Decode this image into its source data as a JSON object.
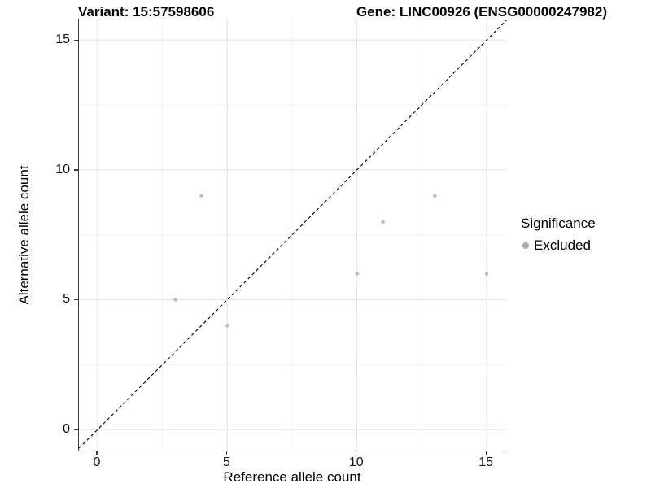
{
  "titles": {
    "left": "Variant: 15:57598606",
    "right": "Gene: LINC00926 (ENSG00000247982)"
  },
  "axes": {
    "x_label": "Reference allele count",
    "y_label": "Alternative allele count"
  },
  "legend": {
    "title": "Significance",
    "entries": [
      {
        "label": "Excluded",
        "color": "#ababab"
      }
    ]
  },
  "colors": {
    "background": "#ffffff",
    "grid_major": "#e6e6e6",
    "grid_minor": "#f2f2f2",
    "axis_line": "#3a3a3a",
    "tick_mark": "#3a3a3a",
    "title_text": "#000000",
    "tick_text": "#111111",
    "point": "#bdbdbd",
    "identity_line": "#111111"
  },
  "chart_data": {
    "type": "scatter",
    "title": "Variant: 15:57598606  |  Gene: LINC00926 (ENSG00000247982)",
    "xlabel": "Reference allele count",
    "ylabel": "Alternative allele count",
    "xlim": [
      -0.72,
      15.78
    ],
    "ylim": [
      -0.81,
      15.82
    ],
    "xticks": [
      0,
      5,
      10,
      15
    ],
    "yticks": [
      0,
      5,
      10,
      15
    ],
    "minor_ticks": [
      2.5,
      7.5,
      12.5
    ],
    "grid": true,
    "legend_position": "right",
    "legend_title": "Significance",
    "series": [
      {
        "name": "Excluded",
        "color": "#bdbdbd",
        "points": [
          [
            3,
            5
          ],
          [
            4,
            9
          ],
          [
            5,
            4
          ],
          [
            10,
            6
          ],
          [
            11,
            8
          ],
          [
            13,
            9
          ],
          [
            15,
            6
          ]
        ]
      }
    ],
    "reference_line": {
      "type": "identity y=x",
      "style": "dashed",
      "color": "#111111"
    }
  }
}
